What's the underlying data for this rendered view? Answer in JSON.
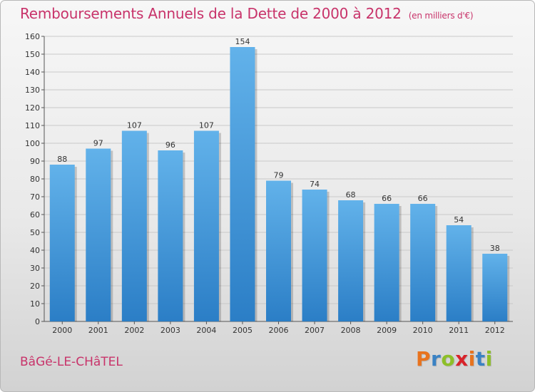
{
  "title": "Remboursements Annuels de la Dette de 2000 à 2012",
  "subtitle": "(en milliers d'€)",
  "commune": "BâGé-LE-CHâTEL",
  "logo": {
    "letters": [
      "P",
      "r",
      "o",
      "x",
      "i",
      "t",
      "i"
    ],
    "colors": [
      "#e8731e",
      "#3a82c4",
      "#8dbf28",
      "#d8232a",
      "#e8731e",
      "#3a82c4",
      "#8dbf28"
    ]
  },
  "colors": {
    "bar_top": "#62b2ea",
    "bar_bottom": "#2b7ec6",
    "title": "#c8336a"
  },
  "chart_data": {
    "type": "bar",
    "categories": [
      "2000",
      "2001",
      "2002",
      "2003",
      "2004",
      "2005",
      "2006",
      "2007",
      "2008",
      "2009",
      "2010",
      "2011",
      "2012"
    ],
    "values": [
      88,
      97,
      107,
      96,
      107,
      154,
      79,
      74,
      68,
      66,
      66,
      54,
      38
    ],
    "ylim": [
      0,
      160
    ],
    "yticks": [
      0,
      10,
      20,
      30,
      40,
      50,
      60,
      70,
      80,
      90,
      100,
      110,
      120,
      130,
      140,
      150,
      160
    ],
    "grid": true,
    "data_labels": true
  }
}
